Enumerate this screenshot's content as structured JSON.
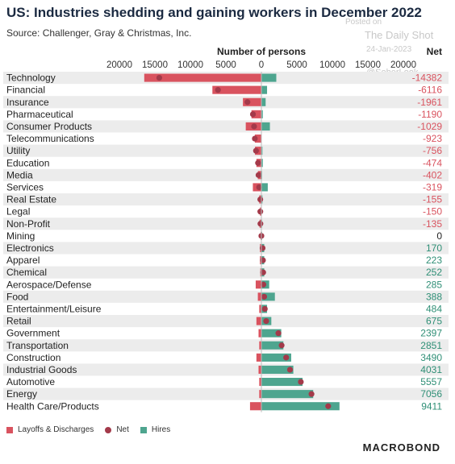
{
  "header": {
    "title": "US: Industries shedding and gaining workers in December 2022",
    "source": "Source: Challenger, Gray & Christmas, Inc."
  },
  "watermark": {
    "posted": "Posted on",
    "brand": "The Daily Shot",
    "date": "24-Jan-2023",
    "handle": "@SoberLook"
  },
  "legend": {
    "layoffs": "Layoffs & Discharges",
    "net": "Net",
    "hires": "Hires"
  },
  "logo": "MACROBOND",
  "colors": {
    "layoffs": "#d9535f",
    "hires": "#4ea58f",
    "net": "#a33a4a",
    "neg_text": "#d9535f",
    "pos_text": "#2f8f76"
  },
  "chart_data": {
    "type": "bar",
    "orientation": "horizontal",
    "xlabel": "Number of persons",
    "net_header": "Net",
    "xlim": [
      -20000,
      20000
    ],
    "ticks": [
      -20000,
      -15000,
      -10000,
      -5000,
      0,
      5000,
      10000,
      15000,
      20000
    ],
    "tick_labels": [
      "20000",
      "15000",
      "10000",
      "5000",
      "0",
      "5000",
      "10000",
      "15000",
      "20000"
    ],
    "categories": [
      "Technology",
      "Financial",
      "Insurance",
      "Pharmaceutical",
      "Consumer Products",
      "Telecommunications",
      "Utility",
      "Education",
      "Media",
      "Services",
      "Real Estate",
      "Legal",
      "Non-Profit",
      "Mining",
      "Electronics",
      "Apparel",
      "Chemical",
      "Aerospace/Defense",
      "Food",
      "Entertainment/Leisure",
      "Retail",
      "Government",
      "Transportation",
      "Construction",
      "Industrial Goods",
      "Automotive",
      "Energy",
      "Health Care/Products"
    ],
    "series": [
      {
        "name": "Layoffs & Discharges",
        "values": [
          -16500,
          -6900,
          -2600,
          -1400,
          -2200,
          -923,
          -900,
          -700,
          -500,
          -1200,
          -300,
          -200,
          -250,
          -100,
          -200,
          -200,
          -150,
          -800,
          -500,
          -300,
          -700,
          -400,
          -300,
          -700,
          -400,
          -300,
          -300,
          -1600
        ]
      },
      {
        "name": "Net",
        "values": [
          -14382,
          -6116,
          -1961,
          -1190,
          -1029,
          -923,
          -756,
          -474,
          -402,
          -319,
          -155,
          -150,
          -135,
          0,
          170,
          223,
          252,
          285,
          388,
          484,
          675,
          2397,
          2851,
          3490,
          4031,
          5557,
          7056,
          9411
        ]
      },
      {
        "name": "Hires",
        "values": [
          2100,
          800,
          600,
          200,
          1200,
          0,
          150,
          200,
          100,
          900,
          150,
          50,
          100,
          100,
          400,
          400,
          400,
          1100,
          1900,
          800,
          1400,
          2800,
          3100,
          4200,
          4500,
          5800,
          7300,
          11000
        ]
      }
    ],
    "net_labels": [
      "-14382",
      "-6116",
      "-1961",
      "-1190",
      "-1029",
      "-923",
      "-756",
      "-474",
      "-402",
      "-319",
      "-155",
      "-150",
      "-135",
      "0",
      "170",
      "223",
      "252",
      "285",
      "388",
      "484",
      "675",
      "2397",
      "2851",
      "3490",
      "4031",
      "5557",
      "7056",
      "9411"
    ]
  }
}
